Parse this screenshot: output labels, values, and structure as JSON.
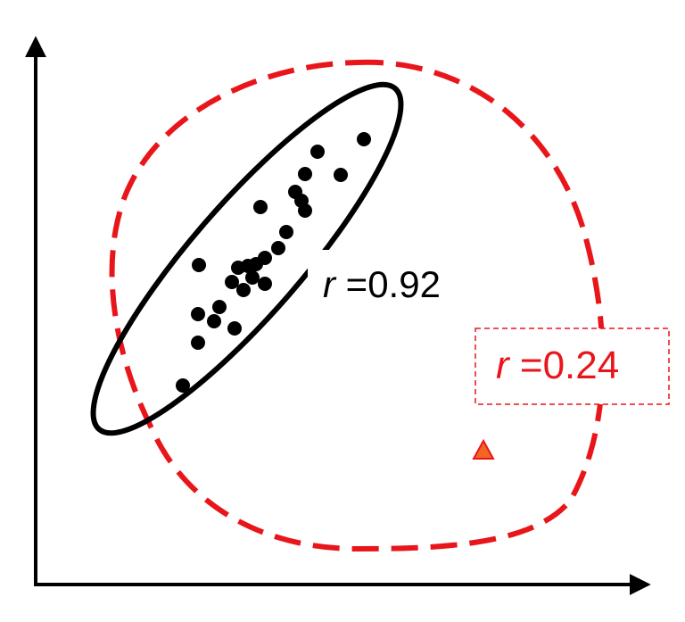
{
  "labels": [
    {
      "symbol": "r",
      "text": " =0.92"
    },
    {
      "symbol": "r",
      "text": " =0.24"
    }
  ]
}
